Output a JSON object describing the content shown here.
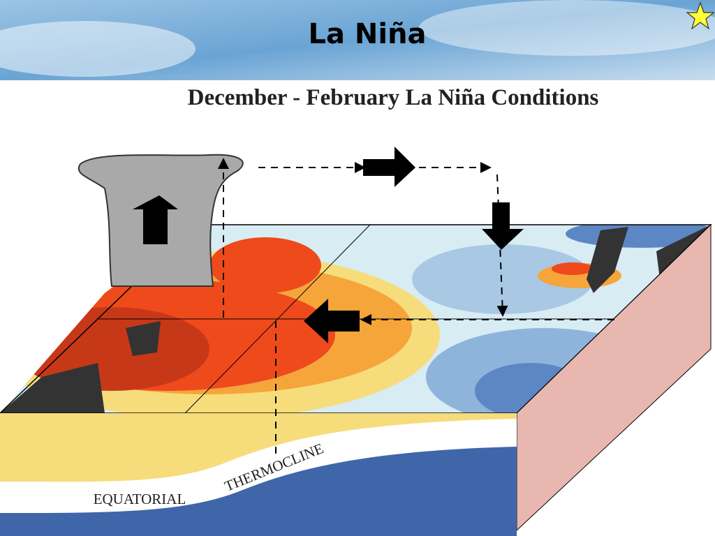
{
  "slide": {
    "title": "La Niña"
  },
  "diagram": {
    "title": "December - February La Niña Conditions",
    "labels": {
      "equatorial": "EQUATORIAL",
      "thermocline": "THERMOCLINE"
    }
  }
}
